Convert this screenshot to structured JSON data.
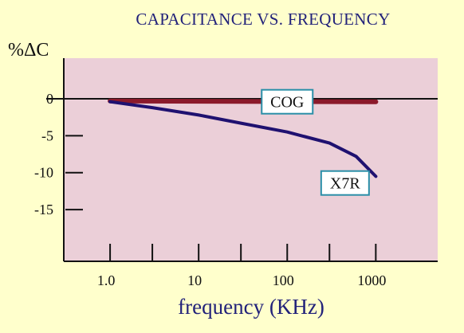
{
  "chart_data": {
    "type": "line",
    "title": "CAPACITANCE VS. FREQUENCY",
    "xlabel": "frequency (KHz)",
    "ylabel": "%ΔC",
    "x_scale": "log",
    "xlim": [
      0.3,
      5000
    ],
    "ylim": [
      -22,
      5.5
    ],
    "x_tick_labels": [
      {
        "value": 1,
        "label": "1.0"
      },
      {
        "value": 10,
        "label": "10"
      },
      {
        "value": 100,
        "label": "100"
      },
      {
        "value": 1000,
        "label": "1000"
      }
    ],
    "x_minor_ticks": [
      1,
      3,
      10,
      30,
      100,
      300,
      1000
    ],
    "y_ticks": [
      0,
      -5,
      -10,
      -15
    ],
    "grid": false,
    "series": [
      {
        "name": "COG",
        "color": "#8b1a2b",
        "points": [
          [
            1,
            -0.3
          ],
          [
            1000,
            -0.4
          ]
        ]
      },
      {
        "name": "X7R",
        "color": "#1f1170",
        "points": [
          [
            1,
            -0.4
          ],
          [
            3,
            -1.2
          ],
          [
            10,
            -2.2
          ],
          [
            30,
            -3.3
          ],
          [
            100,
            -4.5
          ],
          [
            300,
            -6.0
          ],
          [
            600,
            -7.8
          ],
          [
            1000,
            -10.5
          ]
        ]
      }
    ]
  },
  "colors": {
    "background": "#ffffcc",
    "plot_area": "#ebcfd8"
  }
}
